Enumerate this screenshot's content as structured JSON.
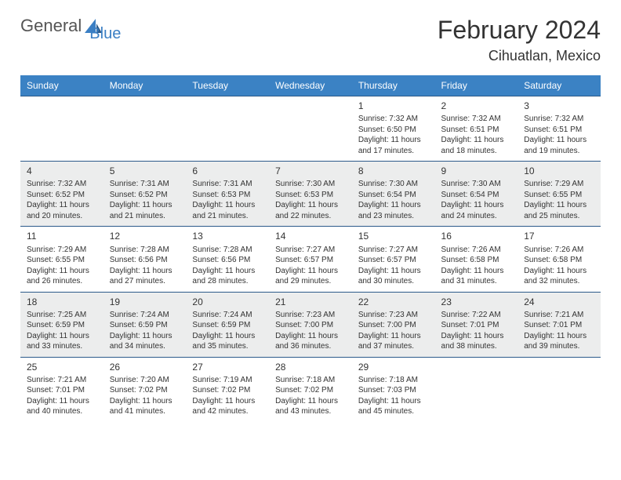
{
  "brand": {
    "text1": "General",
    "text2": "Blue"
  },
  "title": "February 2024",
  "location": "Cihuatlan, Mexico",
  "colors": {
    "header_bg": "#3b82c4",
    "header_text": "#ffffff",
    "border": "#2c5a8a",
    "alt_row_bg": "#eceded",
    "text": "#333333",
    "logo_blue": "#3b7fc4"
  },
  "day_headers": [
    "Sunday",
    "Monday",
    "Tuesday",
    "Wednesday",
    "Thursday",
    "Friday",
    "Saturday"
  ],
  "weeks": [
    {
      "alt": false,
      "days": [
        null,
        null,
        null,
        null,
        {
          "n": "1",
          "sunrise": "7:32 AM",
          "sunset": "6:50 PM",
          "daylight": "11 hours and 17 minutes."
        },
        {
          "n": "2",
          "sunrise": "7:32 AM",
          "sunset": "6:51 PM",
          "daylight": "11 hours and 18 minutes."
        },
        {
          "n": "3",
          "sunrise": "7:32 AM",
          "sunset": "6:51 PM",
          "daylight": "11 hours and 19 minutes."
        }
      ]
    },
    {
      "alt": true,
      "days": [
        {
          "n": "4",
          "sunrise": "7:32 AM",
          "sunset": "6:52 PM",
          "daylight": "11 hours and 20 minutes."
        },
        {
          "n": "5",
          "sunrise": "7:31 AM",
          "sunset": "6:52 PM",
          "daylight": "11 hours and 21 minutes."
        },
        {
          "n": "6",
          "sunrise": "7:31 AM",
          "sunset": "6:53 PM",
          "daylight": "11 hours and 21 minutes."
        },
        {
          "n": "7",
          "sunrise": "7:30 AM",
          "sunset": "6:53 PM",
          "daylight": "11 hours and 22 minutes."
        },
        {
          "n": "8",
          "sunrise": "7:30 AM",
          "sunset": "6:54 PM",
          "daylight": "11 hours and 23 minutes."
        },
        {
          "n": "9",
          "sunrise": "7:30 AM",
          "sunset": "6:54 PM",
          "daylight": "11 hours and 24 minutes."
        },
        {
          "n": "10",
          "sunrise": "7:29 AM",
          "sunset": "6:55 PM",
          "daylight": "11 hours and 25 minutes."
        }
      ]
    },
    {
      "alt": false,
      "days": [
        {
          "n": "11",
          "sunrise": "7:29 AM",
          "sunset": "6:55 PM",
          "daylight": "11 hours and 26 minutes."
        },
        {
          "n": "12",
          "sunrise": "7:28 AM",
          "sunset": "6:56 PM",
          "daylight": "11 hours and 27 minutes."
        },
        {
          "n": "13",
          "sunrise": "7:28 AM",
          "sunset": "6:56 PM",
          "daylight": "11 hours and 28 minutes."
        },
        {
          "n": "14",
          "sunrise": "7:27 AM",
          "sunset": "6:57 PM",
          "daylight": "11 hours and 29 minutes."
        },
        {
          "n": "15",
          "sunrise": "7:27 AM",
          "sunset": "6:57 PM",
          "daylight": "11 hours and 30 minutes."
        },
        {
          "n": "16",
          "sunrise": "7:26 AM",
          "sunset": "6:58 PM",
          "daylight": "11 hours and 31 minutes."
        },
        {
          "n": "17",
          "sunrise": "7:26 AM",
          "sunset": "6:58 PM",
          "daylight": "11 hours and 32 minutes."
        }
      ]
    },
    {
      "alt": true,
      "days": [
        {
          "n": "18",
          "sunrise": "7:25 AM",
          "sunset": "6:59 PM",
          "daylight": "11 hours and 33 minutes."
        },
        {
          "n": "19",
          "sunrise": "7:24 AM",
          "sunset": "6:59 PM",
          "daylight": "11 hours and 34 minutes."
        },
        {
          "n": "20",
          "sunrise": "7:24 AM",
          "sunset": "6:59 PM",
          "daylight": "11 hours and 35 minutes."
        },
        {
          "n": "21",
          "sunrise": "7:23 AM",
          "sunset": "7:00 PM",
          "daylight": "11 hours and 36 minutes."
        },
        {
          "n": "22",
          "sunrise": "7:23 AM",
          "sunset": "7:00 PM",
          "daylight": "11 hours and 37 minutes."
        },
        {
          "n": "23",
          "sunrise": "7:22 AM",
          "sunset": "7:01 PM",
          "daylight": "11 hours and 38 minutes."
        },
        {
          "n": "24",
          "sunrise": "7:21 AM",
          "sunset": "7:01 PM",
          "daylight": "11 hours and 39 minutes."
        }
      ]
    },
    {
      "alt": false,
      "days": [
        {
          "n": "25",
          "sunrise": "7:21 AM",
          "sunset": "7:01 PM",
          "daylight": "11 hours and 40 minutes."
        },
        {
          "n": "26",
          "sunrise": "7:20 AM",
          "sunset": "7:02 PM",
          "daylight": "11 hours and 41 minutes."
        },
        {
          "n": "27",
          "sunrise": "7:19 AM",
          "sunset": "7:02 PM",
          "daylight": "11 hours and 42 minutes."
        },
        {
          "n": "28",
          "sunrise": "7:18 AM",
          "sunset": "7:02 PM",
          "daylight": "11 hours and 43 minutes."
        },
        {
          "n": "29",
          "sunrise": "7:18 AM",
          "sunset": "7:03 PM",
          "daylight": "11 hours and 45 minutes."
        },
        null,
        null
      ]
    }
  ]
}
